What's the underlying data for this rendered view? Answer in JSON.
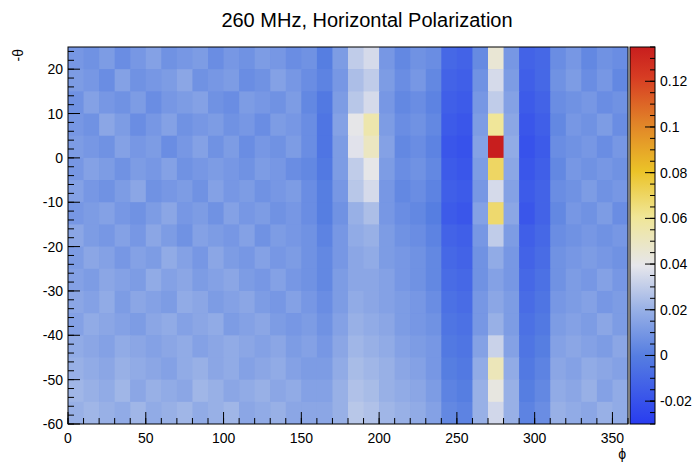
{
  "chart_data": {
    "type": "heatmap",
    "title": "260 MHz, Horizontal Polarization",
    "x_label": "ϕ",
    "y_label": "-θ",
    "xlim": [
      0,
      360
    ],
    "ylim": [
      -60,
      25
    ],
    "xticks": [
      0,
      50,
      100,
      150,
      200,
      250,
      300,
      350
    ],
    "yticks": [
      -60,
      -50,
      -40,
      -30,
      -20,
      -10,
      0,
      10,
      20
    ],
    "x_bins": [
      0,
      10,
      20,
      30,
      40,
      50,
      60,
      70,
      80,
      90,
      100,
      110,
      120,
      130,
      140,
      150,
      160,
      170,
      180,
      190,
      200,
      210,
      220,
      230,
      240,
      250,
      260,
      270,
      280,
      290,
      300,
      310,
      320,
      330,
      340,
      350,
      360
    ],
    "y_bins": [
      25,
      20,
      15,
      10,
      5,
      0,
      -5,
      -10,
      -15,
      -20,
      -25,
      -30,
      -35,
      -40,
      -45,
      -50,
      -55,
      -60
    ],
    "zlim": [
      -0.03,
      0.135
    ],
    "zticks": [
      -0.02,
      0,
      0.02,
      0.04,
      0.06,
      0.08,
      0.1,
      0.12
    ],
    "cells": [
      [
        0.01,
        0.008,
        0.012,
        0.006,
        0.01,
        0.014,
        0.008,
        0.01,
        0.012,
        0.006,
        0.01,
        0.008,
        0.012,
        0.01,
        0.006,
        0.008,
        0.0,
        0.012,
        0.03,
        0.035,
        0.01,
        0.004,
        0.008,
        0.006,
        -0.01,
        -0.012,
        0.005,
        0.045,
        0.01,
        -0.012,
        -0.01,
        0.006,
        0.01,
        0.004,
        0.008,
        0.006
      ],
      [
        0.012,
        0.01,
        0.006,
        0.014,
        0.008,
        0.01,
        0.012,
        0.016,
        0.008,
        0.01,
        0.012,
        0.006,
        0.008,
        0.014,
        0.01,
        0.006,
        0.002,
        0.01,
        0.025,
        0.03,
        0.012,
        0.006,
        0.01,
        0.004,
        -0.012,
        -0.014,
        0.008,
        0.035,
        0.012,
        -0.014,
        -0.01,
        0.008,
        0.012,
        0.006,
        0.01,
        0.004
      ],
      [
        0.008,
        0.014,
        0.01,
        0.008,
        0.012,
        0.006,
        0.01,
        0.012,
        0.014,
        0.008,
        0.006,
        0.012,
        0.01,
        0.008,
        0.012,
        0.004,
        -0.002,
        0.012,
        0.028,
        0.035,
        0.01,
        0.004,
        0.006,
        0.002,
        -0.014,
        -0.016,
        0.01,
        0.03,
        0.014,
        -0.016,
        -0.012,
        0.006,
        0.008,
        0.01,
        0.006,
        0.008
      ],
      [
        0.01,
        0.008,
        0.016,
        0.012,
        0.006,
        0.01,
        0.014,
        0.008,
        0.01,
        0.012,
        0.008,
        0.01,
        0.006,
        0.012,
        0.01,
        0.006,
        -0.004,
        0.014,
        0.04,
        0.055,
        0.012,
        0.006,
        0.008,
        0.004,
        -0.016,
        -0.018,
        0.012,
        0.06,
        0.016,
        -0.018,
        -0.014,
        0.004,
        0.01,
        0.008,
        0.012,
        0.006
      ],
      [
        0.012,
        0.01,
        0.008,
        0.014,
        0.01,
        0.012,
        0.006,
        0.01,
        0.014,
        0.008,
        0.012,
        0.006,
        0.01,
        0.008,
        0.012,
        0.006,
        -0.004,
        0.012,
        0.038,
        0.05,
        0.014,
        0.004,
        0.006,
        0.002,
        -0.018,
        -0.02,
        0.014,
        0.135,
        0.018,
        -0.02,
        -0.016,
        0.006,
        0.008,
        0.01,
        0.006,
        0.01
      ],
      [
        0.01,
        0.014,
        0.012,
        0.008,
        0.012,
        0.01,
        0.014,
        0.008,
        0.01,
        0.012,
        0.01,
        0.008,
        0.012,
        0.01,
        0.006,
        0.004,
        -0.002,
        0.012,
        0.03,
        0.04,
        0.012,
        0.006,
        0.008,
        0.004,
        -0.016,
        -0.018,
        0.012,
        0.07,
        0.016,
        -0.018,
        -0.014,
        0.004,
        0.01,
        0.008,
        0.01,
        0.008
      ],
      [
        0.014,
        0.01,
        0.008,
        0.012,
        0.016,
        0.008,
        0.01,
        0.012,
        0.008,
        0.014,
        0.01,
        0.012,
        0.008,
        0.01,
        0.012,
        0.006,
        0.0,
        0.01,
        0.028,
        0.035,
        0.01,
        0.004,
        0.006,
        0.002,
        -0.014,
        -0.016,
        0.01,
        0.035,
        0.014,
        -0.016,
        -0.012,
        0.006,
        0.008,
        0.012,
        0.008,
        0.01
      ],
      [
        0.01,
        0.012,
        0.014,
        0.01,
        0.008,
        0.012,
        0.016,
        0.01,
        0.012,
        0.008,
        0.014,
        0.01,
        0.012,
        0.008,
        0.01,
        0.006,
        0.0,
        0.008,
        0.02,
        0.025,
        0.01,
        0.006,
        0.004,
        0.0,
        -0.016,
        -0.018,
        0.014,
        0.068,
        0.016,
        -0.018,
        -0.012,
        0.004,
        0.01,
        0.008,
        0.012,
        0.006
      ],
      [
        0.016,
        0.012,
        0.01,
        0.014,
        0.01,
        0.016,
        0.012,
        0.008,
        0.014,
        0.012,
        0.01,
        0.014,
        0.008,
        0.012,
        0.01,
        0.008,
        0.002,
        0.01,
        0.018,
        0.02,
        0.012,
        0.008,
        0.006,
        0.002,
        -0.012,
        -0.014,
        0.01,
        0.03,
        0.012,
        -0.014,
        -0.01,
        0.006,
        0.008,
        0.01,
        0.008,
        0.01
      ],
      [
        0.012,
        0.016,
        0.014,
        0.01,
        0.014,
        0.012,
        0.018,
        0.014,
        0.01,
        0.016,
        0.012,
        0.01,
        0.014,
        0.01,
        0.012,
        0.008,
        0.004,
        0.01,
        0.016,
        0.018,
        0.012,
        0.01,
        0.008,
        0.004,
        -0.01,
        -0.012,
        0.008,
        0.018,
        0.01,
        -0.012,
        -0.008,
        0.008,
        0.01,
        0.012,
        0.01,
        0.008
      ],
      [
        0.014,
        0.012,
        0.016,
        0.014,
        0.012,
        0.018,
        0.014,
        0.016,
        0.012,
        0.014,
        0.016,
        0.012,
        0.01,
        0.014,
        0.01,
        0.008,
        0.004,
        0.012,
        0.016,
        0.016,
        0.014,
        0.01,
        0.008,
        0.004,
        -0.008,
        -0.01,
        0.008,
        0.014,
        0.01,
        -0.01,
        -0.006,
        0.008,
        0.012,
        0.01,
        0.014,
        0.01
      ],
      [
        0.016,
        0.014,
        0.018,
        0.012,
        0.016,
        0.014,
        0.012,
        0.018,
        0.016,
        0.012,
        0.014,
        0.016,
        0.012,
        0.01,
        0.014,
        0.01,
        0.006,
        0.012,
        0.018,
        0.016,
        0.014,
        0.012,
        0.01,
        0.006,
        -0.006,
        -0.008,
        0.01,
        0.016,
        0.012,
        -0.008,
        -0.004,
        0.01,
        0.012,
        0.014,
        0.01,
        0.012
      ],
      [
        0.014,
        0.018,
        0.016,
        0.014,
        0.012,
        0.016,
        0.018,
        0.014,
        0.016,
        0.018,
        0.012,
        0.014,
        0.016,
        0.012,
        0.01,
        0.012,
        0.008,
        0.014,
        0.02,
        0.018,
        0.016,
        0.012,
        0.01,
        0.008,
        -0.004,
        -0.006,
        0.01,
        0.02,
        0.012,
        -0.006,
        -0.002,
        0.012,
        0.014,
        0.012,
        0.016,
        0.012
      ],
      [
        0.018,
        0.016,
        0.014,
        0.018,
        0.016,
        0.014,
        0.016,
        0.018,
        0.014,
        0.016,
        0.018,
        0.016,
        0.014,
        0.016,
        0.012,
        0.014,
        0.01,
        0.016,
        0.022,
        0.02,
        0.018,
        0.014,
        0.012,
        0.01,
        -0.002,
        -0.004,
        0.014,
        0.032,
        0.014,
        -0.004,
        0.0,
        0.014,
        0.016,
        0.014,
        0.012,
        0.016
      ],
      [
        0.02,
        0.018,
        0.016,
        0.02,
        0.018,
        0.016,
        0.014,
        0.018,
        0.02,
        0.016,
        0.018,
        0.014,
        0.016,
        0.018,
        0.014,
        0.012,
        0.012,
        0.018,
        0.024,
        0.022,
        0.02,
        0.016,
        0.014,
        0.01,
        0.0,
        -0.002,
        0.018,
        0.052,
        0.018,
        -0.002,
        0.002,
        0.016,
        0.014,
        0.018,
        0.016,
        0.014
      ],
      [
        0.022,
        0.02,
        0.018,
        0.022,
        0.016,
        0.02,
        0.018,
        0.016,
        0.022,
        0.02,
        0.016,
        0.018,
        0.02,
        0.016,
        0.018,
        0.014,
        0.014,
        0.02,
        0.026,
        0.024,
        0.02,
        0.018,
        0.016,
        0.012,
        0.002,
        0.0,
        0.02,
        0.042,
        0.02,
        0.0,
        0.004,
        0.018,
        0.016,
        0.02,
        0.014,
        0.018
      ],
      [
        0.02,
        0.022,
        0.02,
        0.018,
        0.022,
        0.018,
        0.02,
        0.022,
        0.018,
        0.02,
        0.022,
        0.016,
        0.018,
        0.02,
        0.016,
        0.016,
        0.016,
        0.02,
        0.028,
        0.026,
        0.022,
        0.02,
        0.018,
        0.014,
        0.004,
        0.002,
        0.02,
        0.034,
        0.02,
        0.002,
        0.006,
        0.02,
        0.018,
        0.016,
        0.02,
        0.018
      ]
    ]
  }
}
